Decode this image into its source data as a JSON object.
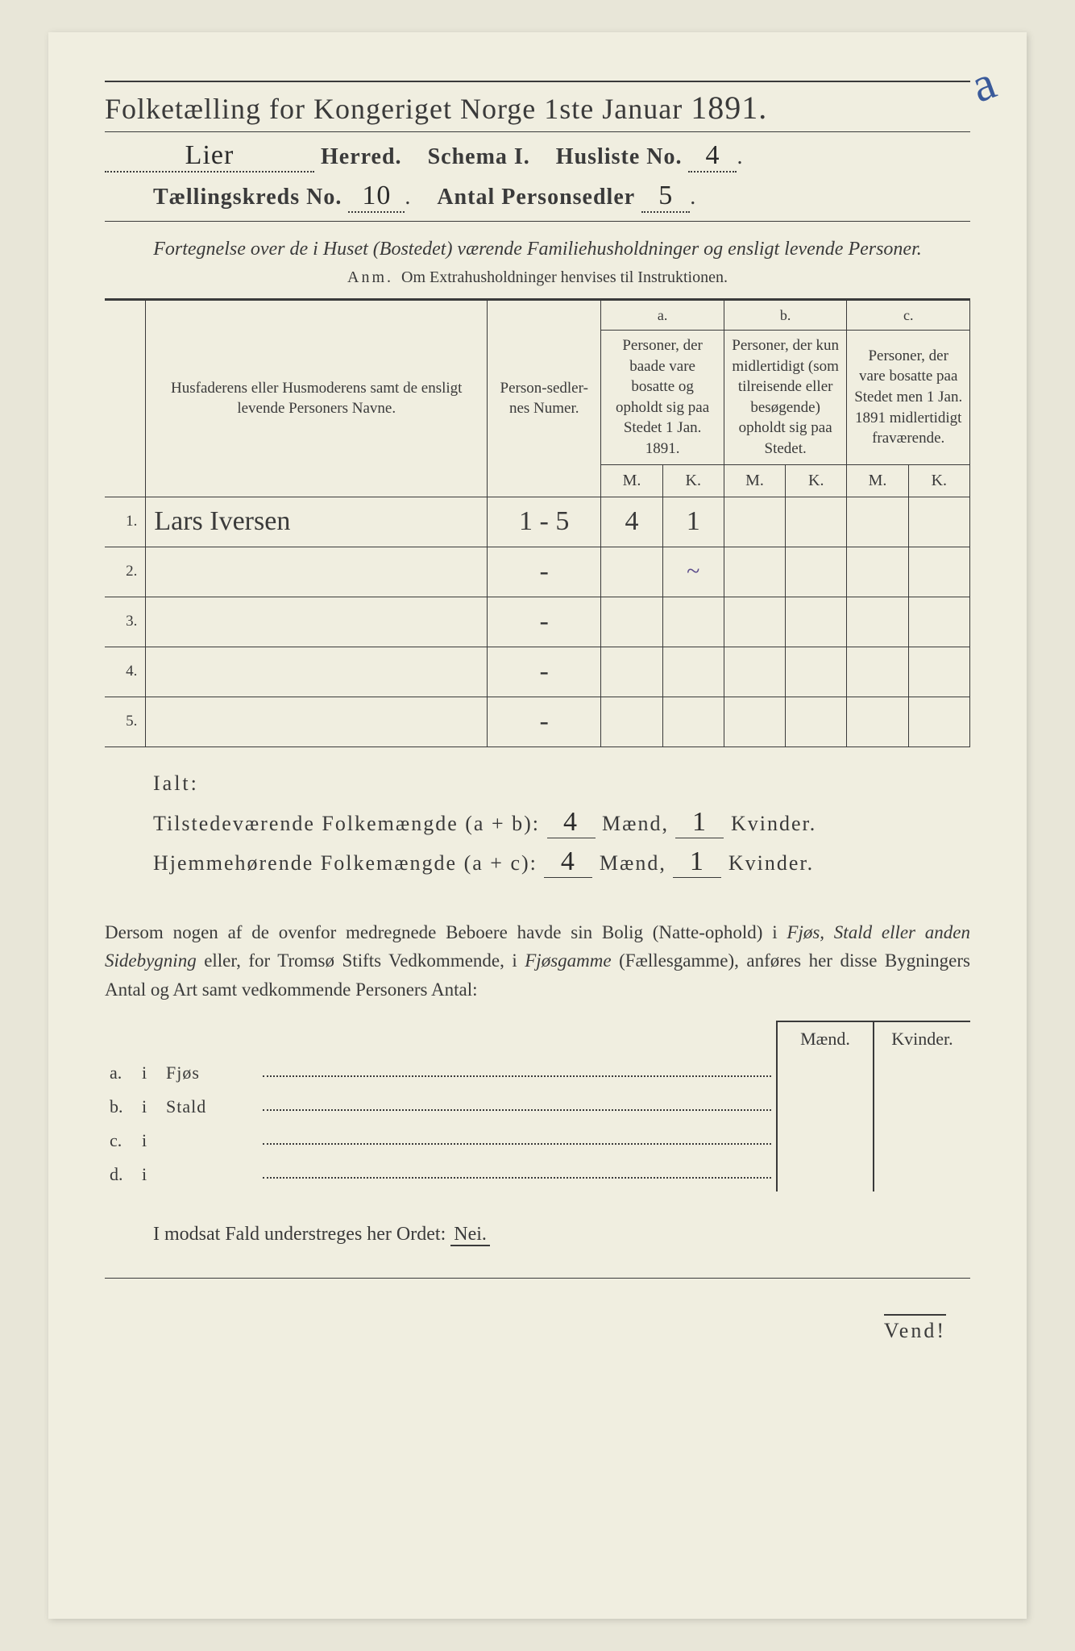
{
  "colors": {
    "paper": "#f0eee0",
    "ink": "#3a3a3a",
    "handwriting": "#2a2a2a",
    "pencil_purple": "#5a4a8a",
    "blue_mark": "#3a5a9a",
    "background": "#e8e6d8"
  },
  "header": {
    "title_prefix": "Folketælling for Kongeriget Norge 1ste Januar",
    "year": "1891.",
    "herred_value": "Lier",
    "herred_label": "Herred.",
    "schema_label": "Schema I.",
    "husliste_label": "Husliste No.",
    "husliste_value": "4",
    "kreds_label": "Tællingskreds No.",
    "kreds_value": "10",
    "antal_label": "Antal Personsedler",
    "antal_value": "5",
    "corner_mark": "a"
  },
  "subtitle": {
    "line": "Fortegnelse over de i Huset (Bostedet) værende Familiehusholdninger og ensligt levende Personer.",
    "anm_label": "Anm.",
    "anm_text": "Om Extrahusholdninger henvises til Instruktionen."
  },
  "table": {
    "col_name": "Husfaderens eller Husmoderens samt de ensligt levende Personers Navne.",
    "col_num": "Person-sedler-nes Numer.",
    "col_a_top": "a.",
    "col_a": "Personer, der baade vare bosatte og opholdt sig paa Stedet 1 Jan. 1891.",
    "col_b_top": "b.",
    "col_b": "Personer, der kun midlertidigt (som tilreisende eller besøgende) opholdt sig paa Stedet.",
    "col_c_top": "c.",
    "col_c": "Personer, der vare bosatte paa Stedet men 1 Jan. 1891 midlertidigt fraværende.",
    "mk_m": "M.",
    "mk_k": "K.",
    "rows": [
      {
        "n": "1.",
        "name": "Lars Iversen",
        "num": "1 - 5",
        "a_m": "4",
        "a_k": "1",
        "b_m": "",
        "b_k": "",
        "c_m": "",
        "c_k": ""
      },
      {
        "n": "2.",
        "name": "",
        "num": "-",
        "a_m": "",
        "a_k": "~",
        "b_m": "",
        "b_k": "",
        "c_m": "",
        "c_k": ""
      },
      {
        "n": "3.",
        "name": "",
        "num": "-",
        "a_m": "",
        "a_k": "",
        "b_m": "",
        "b_k": "",
        "c_m": "",
        "c_k": ""
      },
      {
        "n": "4.",
        "name": "",
        "num": "-",
        "a_m": "",
        "a_k": "",
        "b_m": "",
        "b_k": "",
        "c_m": "",
        "c_k": ""
      },
      {
        "n": "5.",
        "name": "",
        "num": "-",
        "a_m": "",
        "a_k": "",
        "b_m": "",
        "b_k": "",
        "c_m": "",
        "c_k": ""
      }
    ]
  },
  "totals": {
    "ialt": "Ialt:",
    "row1_label": "Tilstedeværende Folkemængde (a + b):",
    "row1_m": "4",
    "row1_k": "1",
    "row2_label": "Hjemmehørende Folkemængde (a + c):",
    "row2_m": "4",
    "row2_k": "1",
    "maend": "Mænd,",
    "kvinder": "Kvinder."
  },
  "paragraph": {
    "text1": "Dersom nogen af de ovenfor medregnede Beboere havde sin Bolig (Natte-ophold) i ",
    "em1": "Fjøs, Stald eller anden Sidebygning",
    "text2": " eller, for Tromsø Stifts Vedkommende, i ",
    "em2": "Fjøsgamme",
    "text3": " (Fællesgamme), anføres her disse Bygningers Antal og Art samt vedkommende Personers Antal:"
  },
  "side_table": {
    "head_m": "Mænd.",
    "head_k": "Kvinder.",
    "rows": [
      {
        "l": "a.",
        "i": "i",
        "t": "Fjøs"
      },
      {
        "l": "b.",
        "i": "i",
        "t": "Stald"
      },
      {
        "l": "c.",
        "i": "i",
        "t": ""
      },
      {
        "l": "d.",
        "i": "i",
        "t": ""
      }
    ]
  },
  "footer": {
    "modsat": "I modsat Fald understreges her Ordet:",
    "nei": "Nei.",
    "vend": "Vend!"
  }
}
